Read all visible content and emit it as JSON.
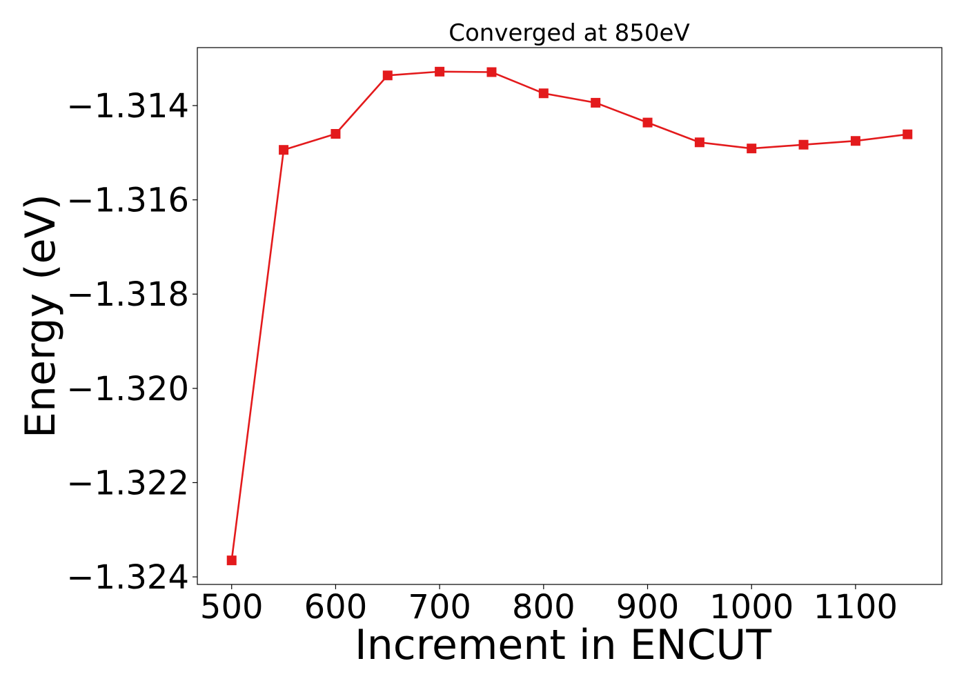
{
  "chart_data": {
    "type": "line",
    "title": "Converged at 850eV",
    "xlabel": "Increment in ENCUT",
    "ylabel": "Energy (eV)",
    "xlim": [
      467,
      1183
    ],
    "ylim": [
      -1.32416,
      -1.31277
    ],
    "x_ticks": [
      500,
      600,
      700,
      800,
      900,
      1000,
      1100
    ],
    "x_tick_labels": [
      "500",
      "600",
      "700",
      "800",
      "900",
      "1000",
      "1100"
    ],
    "y_ticks": [
      -1.314,
      -1.316,
      -1.318,
      -1.32,
      -1.322,
      -1.324
    ],
    "y_tick_labels": [
      "−1.314",
      "−1.316",
      "−1.318",
      "−1.320",
      "−1.322",
      "−1.324"
    ],
    "grid": false,
    "marker": "square",
    "color": "#e31a1c",
    "series": [
      {
        "x": [
          500,
          550,
          600,
          650,
          700,
          750,
          800,
          850,
          900,
          950,
          1000,
          1050,
          1100,
          1150
        ],
        "values": [
          -1.32365,
          -1.31494,
          -1.3146,
          -1.31336,
          -1.31328,
          -1.31329,
          -1.31374,
          -1.31394,
          -1.31436,
          -1.31478,
          -1.31491,
          -1.31483,
          -1.31475,
          -1.31461
        ]
      }
    ]
  }
}
